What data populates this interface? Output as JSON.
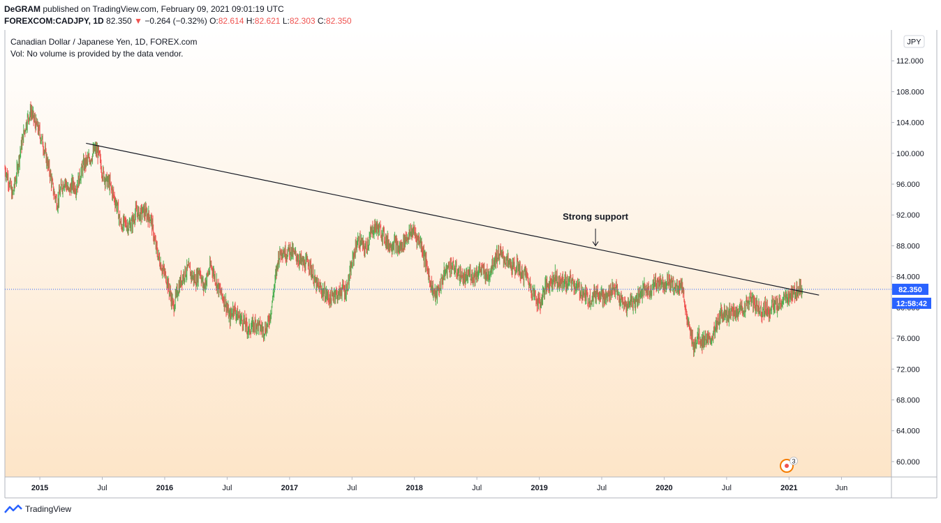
{
  "header": {
    "line1_author": "DeGRAM",
    "line1_rest": "published on TradingView.com, February 09, 2021 09:01:19 UTC",
    "symbol": "FOREXCOM:CADJPY, 1D",
    "price": "82.350",
    "change_arrow": "▼",
    "change": "−0.264 (−0.32%)",
    "o_label": "O:",
    "o": "82.614",
    "h_label": "H:",
    "h": "82.621",
    "l_label": "L:",
    "l": "82.303",
    "c_label": "C:",
    "c": "82.350"
  },
  "legend": {
    "title": "Canadian Dollar / Japanese Yen, 1D, FOREX.com",
    "vol": "Vol: No volume is provided by the data vendor."
  },
  "annotation": {
    "text": "Strong support"
  },
  "currency_badge": "JPY",
  "price_label": "82.350",
  "countdown_label": "12:58:42",
  "event_badge_count": "3",
  "footer": {
    "brand": "TradingView"
  },
  "colors": {
    "up": "#26a69a",
    "down": "#ef5350",
    "up_candle": "#4caf50",
    "price_tag": "#2962ff",
    "trendline": "#131722"
  },
  "chart_data": {
    "type": "candlestick",
    "title": "Canadian Dollar / Japanese Yen, 1D, FOREX.com",
    "ylim": [
      58,
      116
    ],
    "y_ticks": [
      "112.000",
      "108.000",
      "104.000",
      "100.000",
      "96.000",
      "92.000",
      "88.000",
      "84.000",
      "80.000",
      "76.000",
      "72.000",
      "68.000",
      "64.000",
      "60.000"
    ],
    "x_ticks": [
      {
        "label": "2015",
        "t": 2015.0,
        "bold": true
      },
      {
        "label": "Jul",
        "t": 2015.5,
        "bold": false
      },
      {
        "label": "2016",
        "t": 2016.0,
        "bold": true
      },
      {
        "label": "Jul",
        "t": 2016.5,
        "bold": false
      },
      {
        "label": "2017",
        "t": 2017.0,
        "bold": true
      },
      {
        "label": "Jul",
        "t": 2017.5,
        "bold": false
      },
      {
        "label": "2018",
        "t": 2018.0,
        "bold": true
      },
      {
        "label": "Jul",
        "t": 2018.5,
        "bold": false
      },
      {
        "label": "2019",
        "t": 2019.0,
        "bold": true
      },
      {
        "label": "Jul",
        "t": 2019.5,
        "bold": false
      },
      {
        "label": "2020",
        "t": 2020.0,
        "bold": true
      },
      {
        "label": "Jul",
        "t": 2020.5,
        "bold": false
      },
      {
        "label": "2021",
        "t": 2021.0,
        "bold": true
      },
      {
        "label": "Jun",
        "t": 2021.42,
        "bold": false
      }
    ],
    "price_path": [
      [
        2014.72,
        98.0
      ],
      [
        2014.75,
        96.5
      ],
      [
        2014.78,
        94.5
      ],
      [
        2014.81,
        97.0
      ],
      [
        2014.84,
        100.0
      ],
      [
        2014.87,
        102.5
      ],
      [
        2014.9,
        104.5
      ],
      [
        2014.93,
        105.5
      ],
      [
        2014.96,
        104.0
      ],
      [
        2014.99,
        103.0
      ],
      [
        2015.02,
        101.5
      ],
      [
        2015.05,
        99.5
      ],
      [
        2015.08,
        97.5
      ],
      [
        2015.11,
        95.0
      ],
      [
        2015.14,
        93.5
      ],
      [
        2015.17,
        95.5
      ],
      [
        2015.2,
        96.5
      ],
      [
        2015.23,
        95.0
      ],
      [
        2015.26,
        96.0
      ],
      [
        2015.29,
        95.5
      ],
      [
        2015.32,
        97.0
      ],
      [
        2015.35,
        98.5
      ],
      [
        2015.38,
        99.0
      ],
      [
        2015.41,
        99.5
      ],
      [
        2015.44,
        100.5
      ],
      [
        2015.47,
        100.0
      ],
      [
        2015.5,
        97.5
      ],
      [
        2015.53,
        96.5
      ],
      [
        2015.56,
        96.0
      ],
      [
        2015.59,
        94.5
      ],
      [
        2015.62,
        93.0
      ],
      [
        2015.65,
        90.5
      ],
      [
        2015.68,
        91.0
      ],
      [
        2015.71,
        90.5
      ],
      [
        2015.74,
        91.0
      ],
      [
        2015.77,
        92.5
      ],
      [
        2015.8,
        92.0
      ],
      [
        2015.83,
        92.5
      ],
      [
        2015.86,
        92.0
      ],
      [
        2015.89,
        91.5
      ],
      [
        2015.92,
        88.5
      ],
      [
        2015.95,
        86.5
      ],
      [
        2015.98,
        85.0
      ],
      [
        2016.01,
        84.0
      ],
      [
        2016.04,
        82.0
      ],
      [
        2016.07,
        80.0
      ],
      [
        2016.1,
        82.0
      ],
      [
        2016.13,
        83.5
      ],
      [
        2016.16,
        84.5
      ],
      [
        2016.19,
        85.0
      ],
      [
        2016.22,
        84.0
      ],
      [
        2016.25,
        83.5
      ],
      [
        2016.28,
        85.0
      ],
      [
        2016.31,
        82.5
      ],
      [
        2016.34,
        84.0
      ],
      [
        2016.37,
        85.5
      ],
      [
        2016.4,
        84.0
      ],
      [
        2016.43,
        82.5
      ],
      [
        2016.46,
        81.5
      ],
      [
        2016.49,
        80.5
      ],
      [
        2016.52,
        78.5
      ],
      [
        2016.55,
        80.0
      ],
      [
        2016.58,
        79.0
      ],
      [
        2016.61,
        78.5
      ],
      [
        2016.64,
        78.0
      ],
      [
        2016.67,
        77.0
      ],
      [
        2016.7,
        77.5
      ],
      [
        2016.73,
        78.0
      ],
      [
        2016.76,
        77.5
      ],
      [
        2016.79,
        77.0
      ],
      [
        2016.82,
        77.5
      ],
      [
        2016.85,
        79.5
      ],
      [
        2016.88,
        83.0
      ],
      [
        2016.91,
        86.5
      ],
      [
        2016.94,
        87.5
      ],
      [
        2016.97,
        87.0
      ],
      [
        2017.0,
        87.5
      ],
      [
        2017.03,
        87.0
      ],
      [
        2017.06,
        86.5
      ],
      [
        2017.09,
        86.0
      ],
      [
        2017.12,
        85.5
      ],
      [
        2017.15,
        86.0
      ],
      [
        2017.18,
        84.5
      ],
      [
        2017.21,
        83.0
      ],
      [
        2017.24,
        82.5
      ],
      [
        2017.27,
        82.0
      ],
      [
        2017.3,
        81.5
      ],
      [
        2017.33,
        81.0
      ],
      [
        2017.36,
        82.0
      ],
      [
        2017.39,
        81.5
      ],
      [
        2017.42,
        82.5
      ],
      [
        2017.45,
        82.0
      ],
      [
        2017.48,
        84.0
      ],
      [
        2017.51,
        86.5
      ],
      [
        2017.54,
        88.5
      ],
      [
        2017.57,
        88.5
      ],
      [
        2017.6,
        87.5
      ],
      [
        2017.63,
        88.5
      ],
      [
        2017.66,
        90.0
      ],
      [
        2017.69,
        90.5
      ],
      [
        2017.72,
        90.0
      ],
      [
        2017.75,
        89.5
      ],
      [
        2017.78,
        88.5
      ],
      [
        2017.81,
        88.0
      ],
      [
        2017.84,
        88.5
      ],
      [
        2017.87,
        87.5
      ],
      [
        2017.9,
        88.0
      ],
      [
        2017.93,
        89.0
      ],
      [
        2017.96,
        89.5
      ],
      [
        2017.99,
        90.0
      ],
      [
        2018.02,
        89.0
      ],
      [
        2018.05,
        88.5
      ],
      [
        2018.08,
        86.5
      ],
      [
        2018.11,
        84.5
      ],
      [
        2018.14,
        82.5
      ],
      [
        2018.17,
        81.5
      ],
      [
        2018.2,
        82.5
      ],
      [
        2018.23,
        84.0
      ],
      [
        2018.26,
        85.0
      ],
      [
        2018.29,
        85.5
      ],
      [
        2018.32,
        85.0
      ],
      [
        2018.35,
        84.5
      ],
      [
        2018.38,
        84.0
      ],
      [
        2018.41,
        83.5
      ],
      [
        2018.44,
        84.5
      ],
      [
        2018.47,
        84.0
      ],
      [
        2018.5,
        84.5
      ],
      [
        2018.53,
        85.0
      ],
      [
        2018.56,
        84.5
      ],
      [
        2018.59,
        84.0
      ],
      [
        2018.62,
        85.5
      ],
      [
        2018.65,
        86.5
      ],
      [
        2018.68,
        87.0
      ],
      [
        2018.71,
        86.5
      ],
      [
        2018.74,
        86.0
      ],
      [
        2018.77,
        85.5
      ],
      [
        2018.8,
        85.0
      ],
      [
        2018.83,
        85.5
      ],
      [
        2018.86,
        84.0
      ],
      [
        2018.89,
        84.5
      ],
      [
        2018.92,
        83.0
      ],
      [
        2018.95,
        82.0
      ],
      [
        2018.98,
        81.0
      ],
      [
        2019.01,
        80.5
      ],
      [
        2019.04,
        82.5
      ],
      [
        2019.07,
        83.0
      ],
      [
        2019.1,
        83.5
      ],
      [
        2019.13,
        84.0
      ],
      [
        2019.16,
        83.0
      ],
      [
        2019.19,
        83.5
      ],
      [
        2019.22,
        83.0
      ],
      [
        2019.25,
        83.5
      ],
      [
        2019.28,
        83.0
      ],
      [
        2019.31,
        82.5
      ],
      [
        2019.34,
        82.0
      ],
      [
        2019.37,
        81.5
      ],
      [
        2019.4,
        81.0
      ],
      [
        2019.43,
        81.5
      ],
      [
        2019.46,
        82.0
      ],
      [
        2019.49,
        82.0
      ],
      [
        2019.52,
        81.0
      ],
      [
        2019.55,
        81.5
      ],
      [
        2019.58,
        82.5
      ],
      [
        2019.61,
        82.5
      ],
      [
        2019.64,
        81.0
      ],
      [
        2019.67,
        80.5
      ],
      [
        2019.7,
        80.0
      ],
      [
        2019.73,
        81.0
      ],
      [
        2019.76,
        80.5
      ],
      [
        2019.79,
        81.5
      ],
      [
        2019.82,
        82.0
      ],
      [
        2019.85,
        82.5
      ],
      [
        2019.88,
        82.0
      ],
      [
        2019.91,
        83.0
      ],
      [
        2019.94,
        83.0
      ],
      [
        2019.97,
        83.5
      ],
      [
        2020.0,
        83.0
      ],
      [
        2020.03,
        83.5
      ],
      [
        2020.06,
        83.0
      ],
      [
        2020.09,
        82.5
      ],
      [
        2020.12,
        83.0
      ],
      [
        2020.15,
        82.5
      ],
      [
        2020.18,
        78.5
      ],
      [
        2020.21,
        76.5
      ],
      [
        2020.24,
        75.0
      ],
      [
        2020.27,
        76.5
      ],
      [
        2020.3,
        75.5
      ],
      [
        2020.33,
        76.0
      ],
      [
        2020.36,
        75.5
      ],
      [
        2020.39,
        76.5
      ],
      [
        2020.42,
        77.5
      ],
      [
        2020.45,
        79.0
      ],
      [
        2020.48,
        79.5
      ],
      [
        2020.51,
        79.0
      ],
      [
        2020.54,
        79.5
      ],
      [
        2020.57,
        79.0
      ],
      [
        2020.6,
        80.0
      ],
      [
        2020.63,
        79.5
      ],
      [
        2020.66,
        80.5
      ],
      [
        2020.69,
        81.0
      ],
      [
        2020.72,
        80.5
      ],
      [
        2020.75,
        80.0
      ],
      [
        2020.78,
        79.5
      ],
      [
        2020.81,
        80.0
      ],
      [
        2020.84,
        79.5
      ],
      [
        2020.87,
        80.5
      ],
      [
        2020.9,
        80.0
      ],
      [
        2020.93,
        80.5
      ],
      [
        2020.96,
        81.0
      ],
      [
        2020.99,
        81.5
      ],
      [
        2021.02,
        81.5
      ],
      [
        2021.05,
        82.0
      ],
      [
        2021.08,
        82.5
      ],
      [
        2021.11,
        82.35
      ]
    ],
    "trendline": [
      [
        2015.37,
        101.3
      ],
      [
        2021.24,
        81.6
      ]
    ],
    "annotation": {
      "label": "Strong support",
      "x": 2019.45,
      "y": 90.5,
      "arrow_to": 88.0
    },
    "last_price": 82.35
  }
}
